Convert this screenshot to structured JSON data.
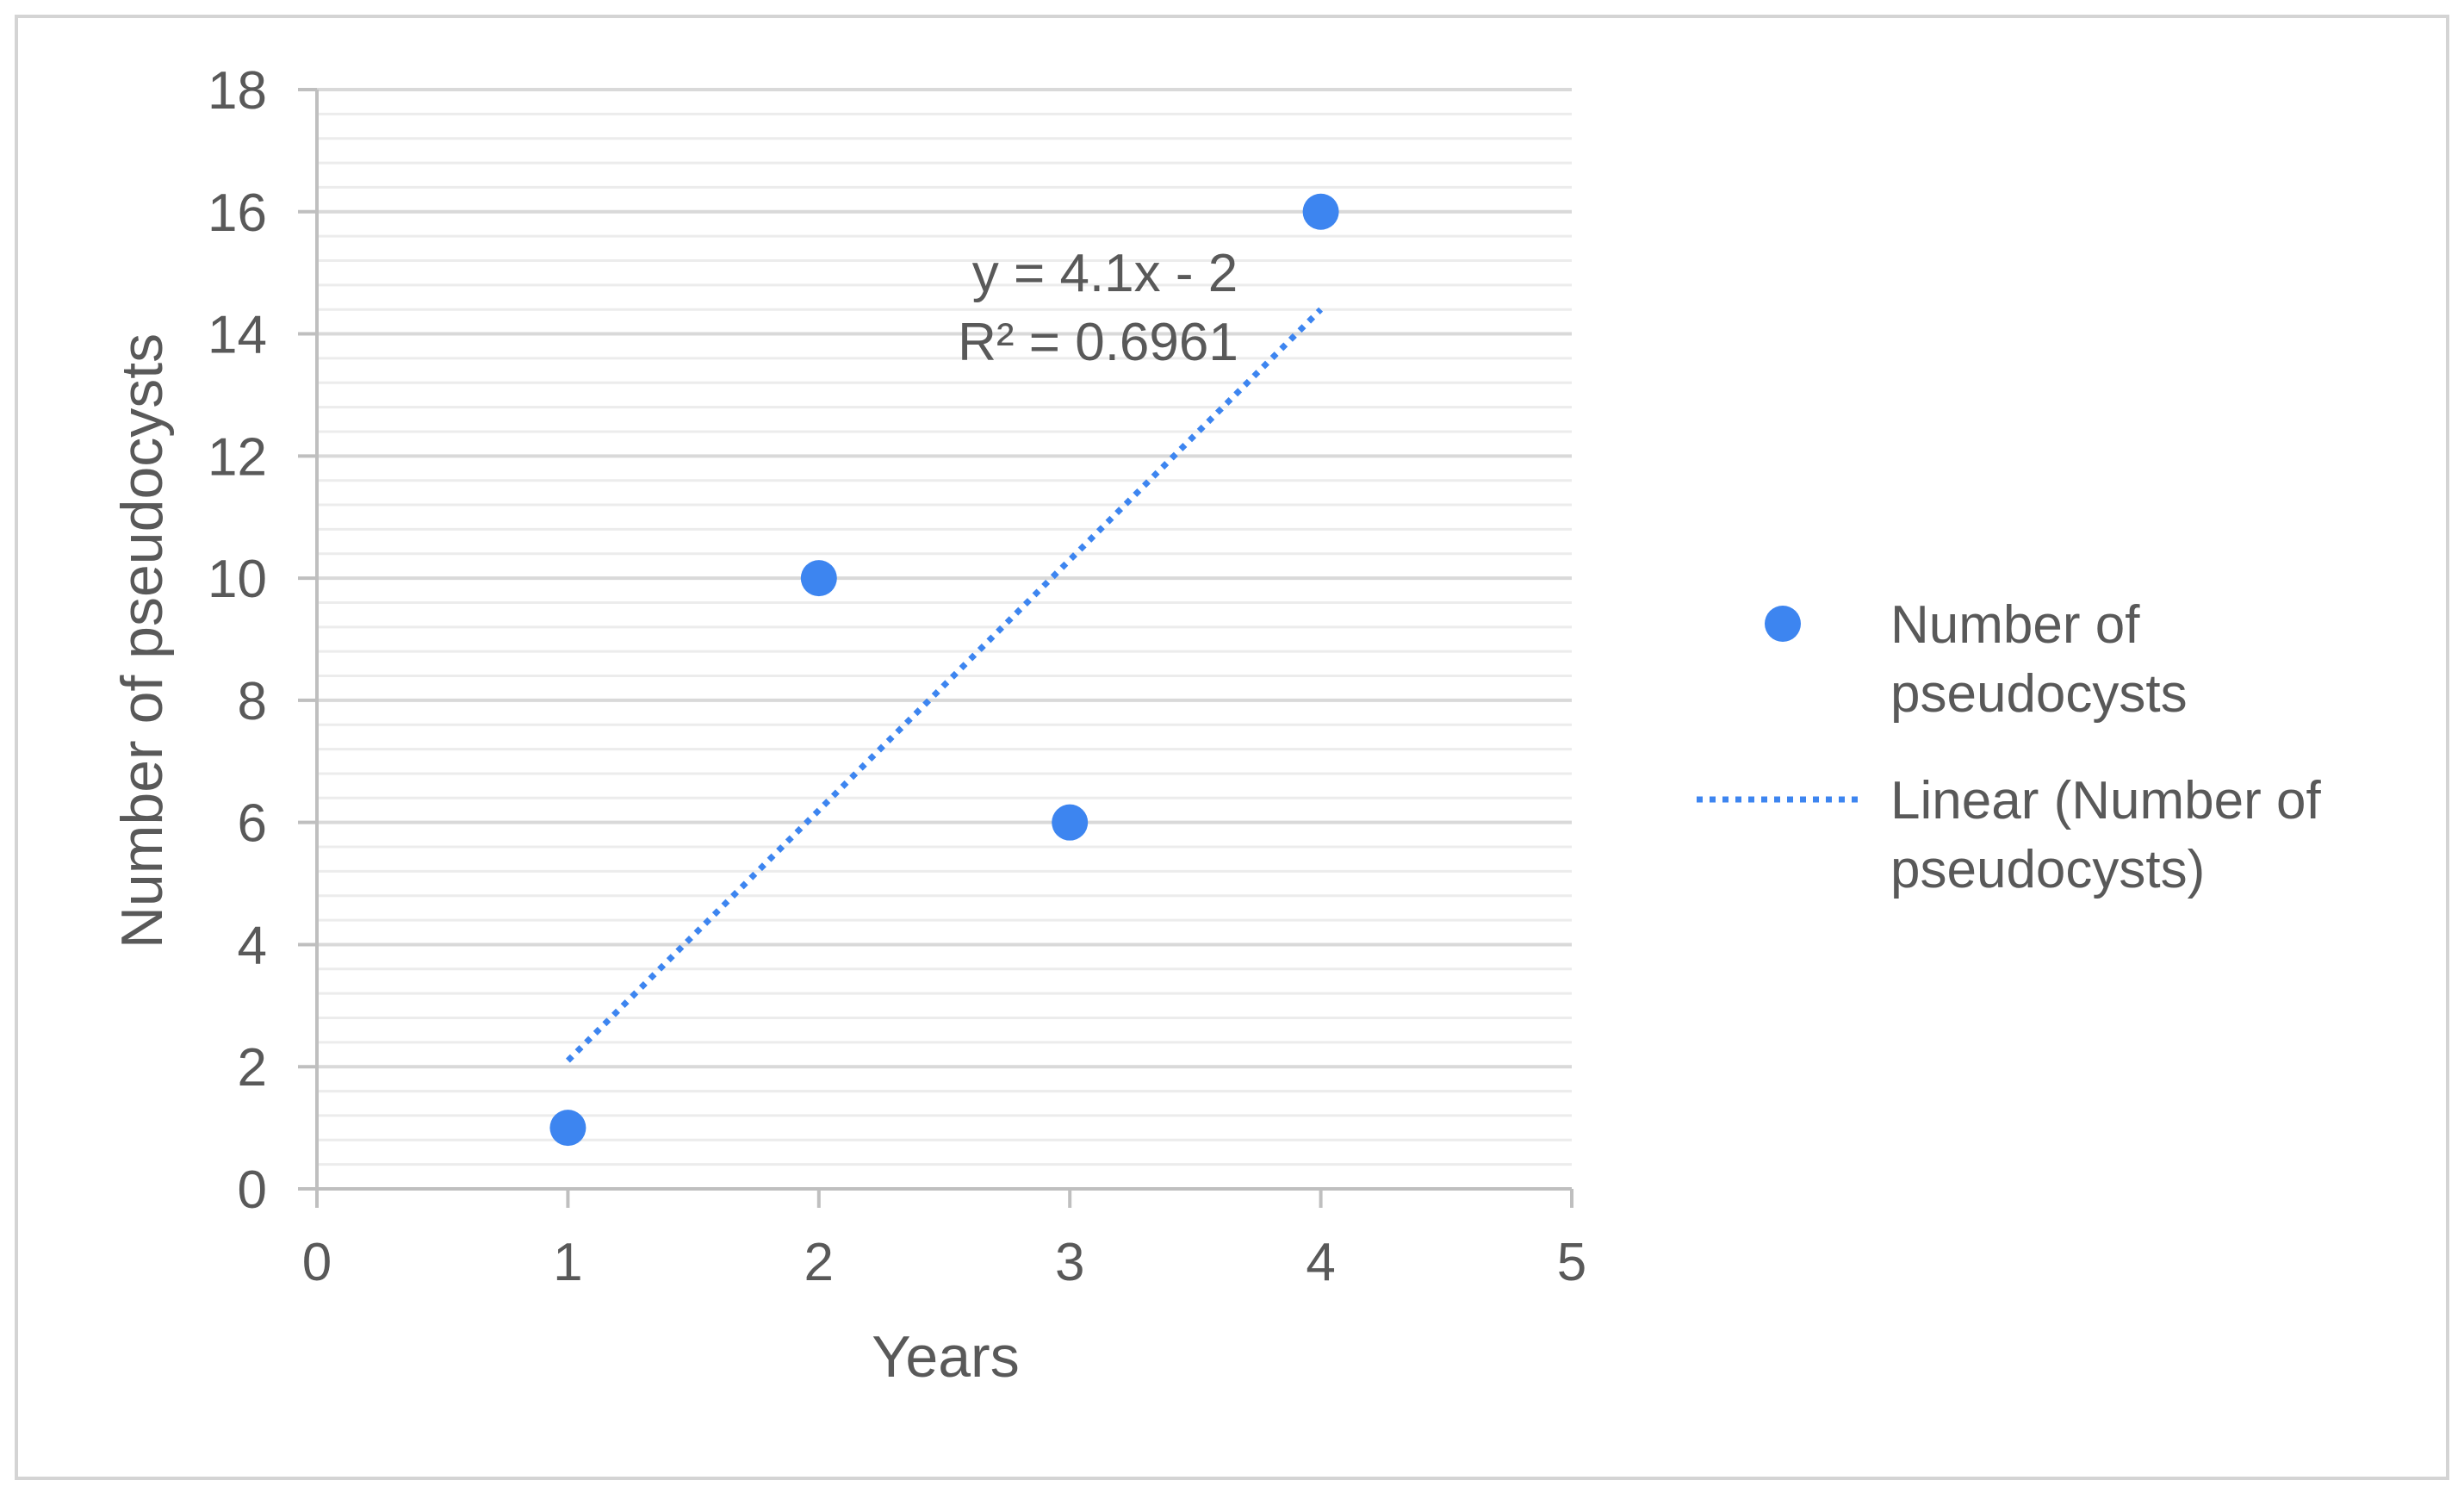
{
  "chart_data": {
    "type": "scatter",
    "xlabel": "Years",
    "ylabel": "Number of pseudocysts",
    "xlim": [
      0,
      5
    ],
    "ylim": [
      0,
      18
    ],
    "x_ticks": [
      "0",
      "1",
      "2",
      "3",
      "4",
      "5"
    ],
    "y_ticks": [
      "0",
      "2",
      "4",
      "6",
      "8",
      "10",
      "12",
      "14",
      "16",
      "18"
    ],
    "grid": true,
    "series": [
      {
        "name": "Number of pseudocysts",
        "kind": "scatter",
        "color": "#3d85f0",
        "points": [
          {
            "x": 1,
            "y": 1
          },
          {
            "x": 2,
            "y": 10
          },
          {
            "x": 3,
            "y": 6
          },
          {
            "x": 4,
            "y": 16
          }
        ]
      }
    ],
    "trendline": {
      "name": "Linear (Number of pseudocysts)",
      "type": "linear",
      "slope": 4.1,
      "intercept": -2,
      "x_range": [
        1,
        4
      ],
      "color": "#3d85f0",
      "style": "dotted",
      "equation": "y = 4.1x - 2",
      "r_squared": "R² = 0.6961"
    },
    "legend": {
      "placement": "right",
      "items": [
        {
          "marker": "circle",
          "lines": [
            "Number of",
            "pseudocysts"
          ]
        },
        {
          "marker": "dotted-line",
          "lines": [
            "Linear (Number of",
            "pseudocysts)"
          ]
        }
      ]
    },
    "colors": {
      "frame_border": "#d4d4d4",
      "grid_major": "#d9d9d9",
      "grid_minor": "#ececec",
      "axis_line": "#bfbfbf",
      "text": "#595959"
    }
  }
}
